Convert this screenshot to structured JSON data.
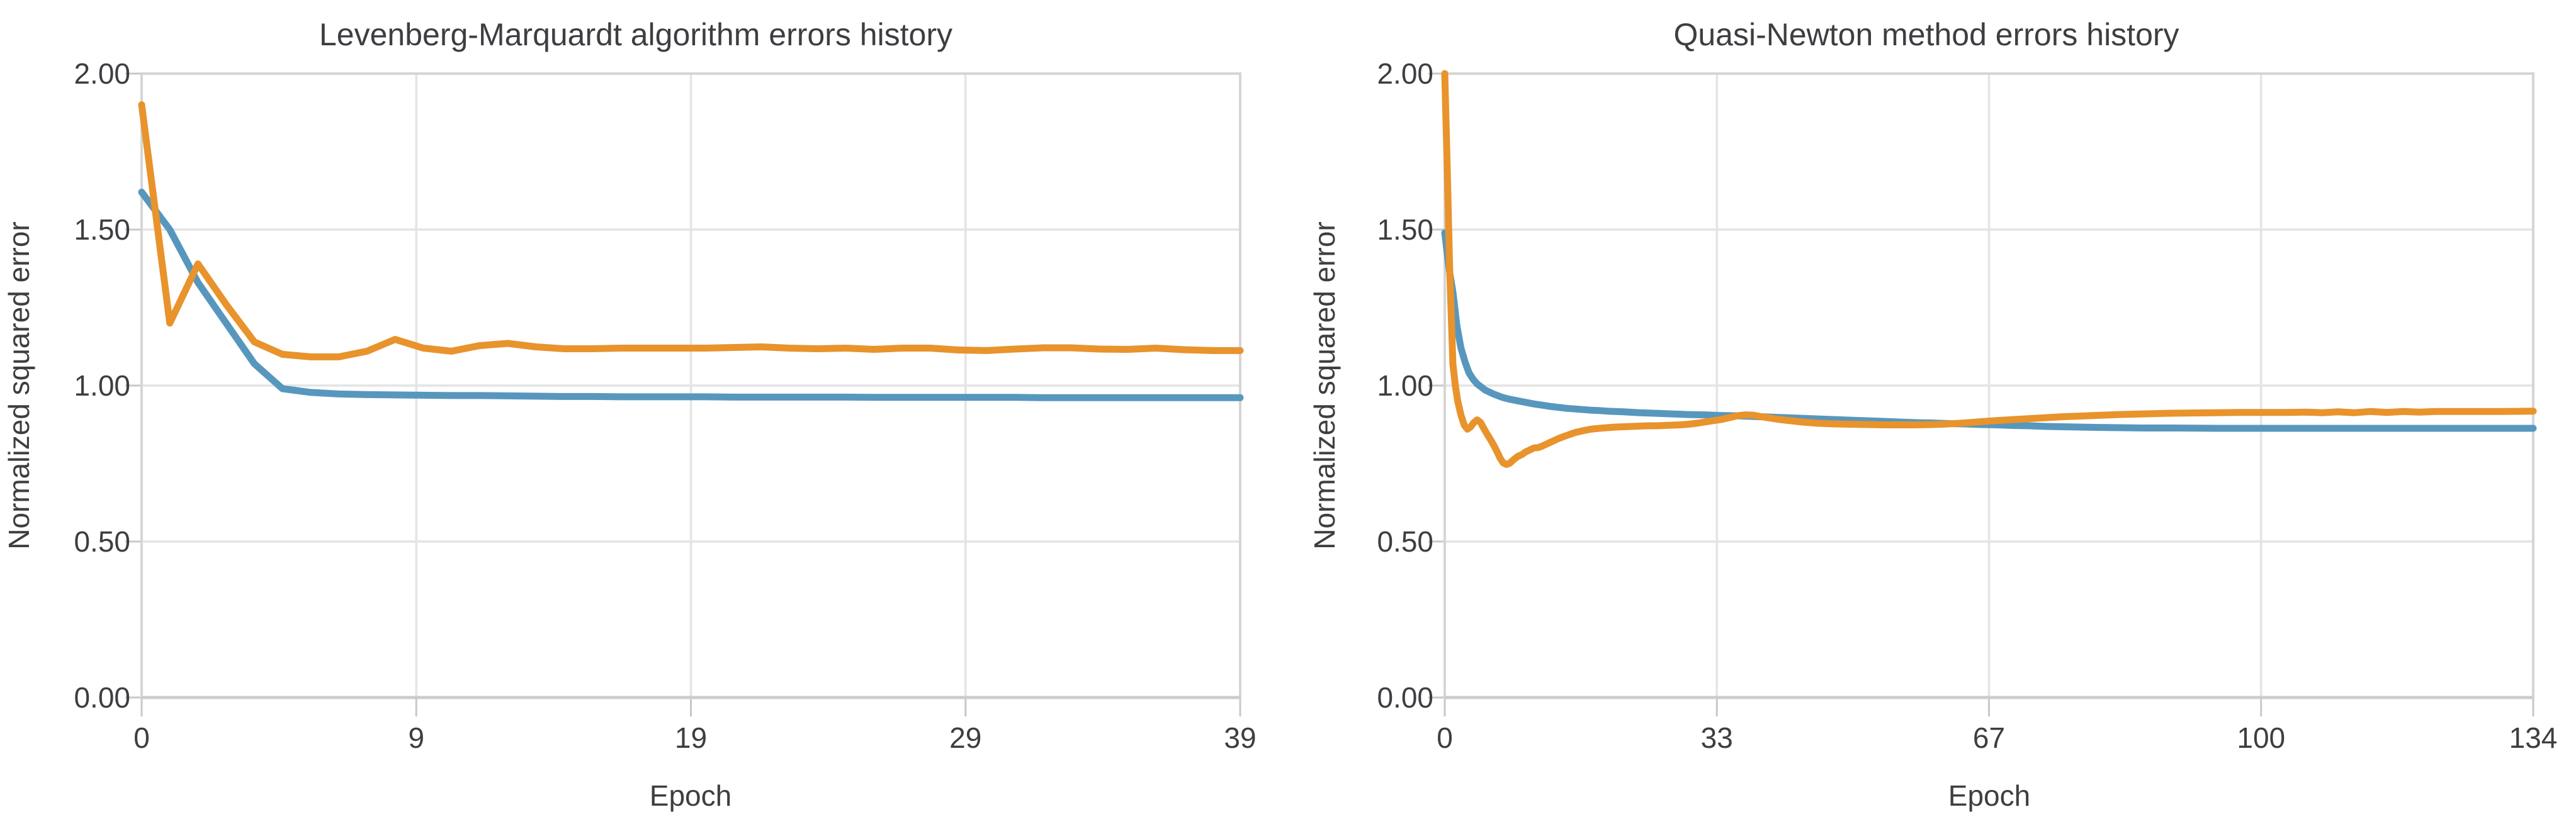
{
  "figure_background": "#ffffff",
  "text_color": "#3e3e42",
  "gridline_color": "#e4e4e4",
  "chart_data": [
    {
      "type": "line",
      "title": "Levenberg-Marquardt algorithm errors history",
      "xlabel": "Epoch",
      "ylabel": "Normalized squared error",
      "xlim": [
        0,
        39
      ],
      "ylim": [
        0,
        2
      ],
      "grid": "on",
      "legend": "none",
      "xtick_labels": [
        "0",
        "9",
        "19",
        "29",
        "39"
      ],
      "yticks": [
        0,
        0.5,
        1,
        1.5,
        2
      ],
      "ytick_labels": [
        "0.00",
        "0.50",
        "1.00",
        "1.50",
        "2.00"
      ],
      "series": [
        {
          "name": "series-blue",
          "color": "#5897bd",
          "points": [
            [
              0,
              1.62
            ],
            [
              1,
              1.5
            ],
            [
              2,
              1.33
            ],
            [
              3,
              1.2
            ],
            [
              4,
              1.07
            ],
            [
              5,
              0.99
            ],
            [
              6,
              0.978
            ],
            [
              7,
              0.973
            ],
            [
              8,
              0.971
            ],
            [
              9,
              0.97
            ],
            [
              10,
              0.969
            ],
            [
              11,
              0.968
            ],
            [
              12,
              0.968
            ],
            [
              13,
              0.967
            ],
            [
              14,
              0.966
            ],
            [
              15,
              0.965
            ],
            [
              16,
              0.965
            ],
            [
              17,
              0.964
            ],
            [
              18,
              0.964
            ],
            [
              19,
              0.964
            ],
            [
              20,
              0.964
            ],
            [
              21,
              0.963
            ],
            [
              22,
              0.963
            ],
            [
              23,
              0.963
            ],
            [
              24,
              0.963
            ],
            [
              25,
              0.963
            ],
            [
              26,
              0.962
            ],
            [
              27,
              0.962
            ],
            [
              28,
              0.962
            ],
            [
              29,
              0.962
            ],
            [
              30,
              0.962
            ],
            [
              31,
              0.962
            ],
            [
              32,
              0.961
            ],
            [
              33,
              0.961
            ],
            [
              34,
              0.961
            ],
            [
              35,
              0.961
            ],
            [
              36,
              0.961
            ],
            [
              37,
              0.961
            ],
            [
              38,
              0.961
            ],
            [
              39,
              0.961
            ]
          ]
        },
        {
          "name": "series-orange",
          "color": "#e8932c",
          "points": [
            [
              0,
              1.9
            ],
            [
              1,
              1.2
            ],
            [
              2,
              1.39
            ],
            [
              3,
              1.26
            ],
            [
              4,
              1.14
            ],
            [
              5,
              1.1
            ],
            [
              6,
              1.092
            ],
            [
              7,
              1.092
            ],
            [
              8,
              1.11
            ],
            [
              9,
              1.148
            ],
            [
              10,
              1.12
            ],
            [
              11,
              1.11
            ],
            [
              12,
              1.128
            ],
            [
              13,
              1.135
            ],
            [
              14,
              1.124
            ],
            [
              15,
              1.118
            ],
            [
              16,
              1.118
            ],
            [
              17,
              1.12
            ],
            [
              18,
              1.12
            ],
            [
              19,
              1.12
            ],
            [
              20,
              1.12
            ],
            [
              21,
              1.122
            ],
            [
              22,
              1.124
            ],
            [
              23,
              1.12
            ],
            [
              24,
              1.118
            ],
            [
              25,
              1.12
            ],
            [
              26,
              1.116
            ],
            [
              27,
              1.12
            ],
            [
              28,
              1.12
            ],
            [
              29,
              1.114
            ],
            [
              30,
              1.112
            ],
            [
              31,
              1.117
            ],
            [
              32,
              1.121
            ],
            [
              33,
              1.121
            ],
            [
              34,
              1.117
            ],
            [
              35,
              1.116
            ],
            [
              36,
              1.12
            ],
            [
              37,
              1.115
            ],
            [
              38,
              1.112
            ],
            [
              39,
              1.112
            ]
          ]
        }
      ]
    },
    {
      "type": "line",
      "title": "Quasi-Newton method errors history",
      "xlabel": "Epoch",
      "ylabel": "Normalized squared error",
      "xlim": [
        0,
        134
      ],
      "ylim": [
        0,
        2
      ],
      "grid": "on",
      "legend": "none",
      "xtick_labels": [
        "0",
        "33",
        "67",
        "100",
        "134"
      ],
      "yticks": [
        0,
        0.5,
        1,
        1.5,
        2
      ],
      "ytick_labels": [
        "0.00",
        "0.50",
        "1.00",
        "1.50",
        "2.00"
      ],
      "series": [
        {
          "name": "series-blue",
          "color": "#5897bd",
          "points": [
            [
              0,
              1.49
            ],
            [
              0.5,
              1.38
            ],
            [
              1,
              1.3
            ],
            [
              1.5,
              1.19
            ],
            [
              2,
              1.12
            ],
            [
              2.5,
              1.075
            ],
            [
              3,
              1.04
            ],
            [
              3.5,
              1.02
            ],
            [
              4,
              1.005
            ],
            [
              5,
              0.985
            ],
            [
              6,
              0.973
            ],
            [
              7,
              0.963
            ],
            [
              8,
              0.956
            ],
            [
              9,
              0.951
            ],
            [
              10,
              0.946
            ],
            [
              11,
              0.941
            ],
            [
              12,
              0.937
            ],
            [
              13,
              0.933
            ],
            [
              14,
              0.93
            ],
            [
              15,
              0.927
            ],
            [
              16,
              0.925
            ],
            [
              17,
              0.923
            ],
            [
              18,
              0.921
            ],
            [
              19,
              0.92
            ],
            [
              20,
              0.918
            ],
            [
              22,
              0.916
            ],
            [
              24,
              0.913
            ],
            [
              26,
              0.911
            ],
            [
              28,
              0.909
            ],
            [
              30,
              0.907
            ],
            [
              32,
              0.906
            ],
            [
              34,
              0.904
            ],
            [
              36,
              0.903
            ],
            [
              38,
              0.901
            ],
            [
              40,
              0.899
            ],
            [
              42,
              0.897
            ],
            [
              44,
              0.895
            ],
            [
              46,
              0.893
            ],
            [
              48,
              0.891
            ],
            [
              50,
              0.889
            ],
            [
              52,
              0.887
            ],
            [
              54,
              0.885
            ],
            [
              56,
              0.883
            ],
            [
              58,
              0.881
            ],
            [
              60,
              0.88
            ],
            [
              62,
              0.878
            ],
            [
              64,
              0.877
            ],
            [
              66,
              0.875
            ],
            [
              68,
              0.874
            ],
            [
              70,
              0.872
            ],
            [
              72,
              0.871
            ],
            [
              74,
              0.869
            ],
            [
              76,
              0.868
            ],
            [
              78,
              0.867
            ],
            [
              80,
              0.866
            ],
            [
              83,
              0.865
            ],
            [
              86,
              0.864
            ],
            [
              90,
              0.864
            ],
            [
              95,
              0.863
            ],
            [
              100,
              0.863
            ],
            [
              105,
              0.863
            ],
            [
              110,
              0.863
            ],
            [
              115,
              0.863
            ],
            [
              120,
              0.863
            ],
            [
              125,
              0.863
            ],
            [
              130,
              0.863
            ],
            [
              134,
              0.863
            ]
          ]
        },
        {
          "name": "series-orange",
          "color": "#e8932c",
          "points": [
            [
              0,
              2.0
            ],
            [
              0.3,
              1.7
            ],
            [
              0.6,
              1.38
            ],
            [
              1,
              1.07
            ],
            [
              1.3,
              1.0
            ],
            [
              1.6,
              0.95
            ],
            [
              2,
              0.905
            ],
            [
              2.4,
              0.873
            ],
            [
              2.8,
              0.86
            ],
            [
              3.2,
              0.868
            ],
            [
              3.6,
              0.882
            ],
            [
              4,
              0.89
            ],
            [
              4.4,
              0.882
            ],
            [
              4.8,
              0.863
            ],
            [
              5.2,
              0.845
            ],
            [
              5.6,
              0.828
            ],
            [
              6,
              0.81
            ],
            [
              6.4,
              0.79
            ],
            [
              6.8,
              0.768
            ],
            [
              7.2,
              0.752
            ],
            [
              7.6,
              0.747
            ],
            [
              8,
              0.751
            ],
            [
              8.5,
              0.763
            ],
            [
              9,
              0.773
            ],
            [
              9.5,
              0.779
            ],
            [
              10,
              0.788
            ],
            [
              10.5,
              0.794
            ],
            [
              11,
              0.8
            ],
            [
              11.5,
              0.801
            ],
            [
              12,
              0.806
            ],
            [
              13,
              0.818
            ],
            [
              14,
              0.83
            ],
            [
              15,
              0.84
            ],
            [
              16,
              0.849
            ],
            [
              17,
              0.855
            ],
            [
              18,
              0.86
            ],
            [
              19,
              0.863
            ],
            [
              20,
              0.865
            ],
            [
              21,
              0.867
            ],
            [
              22,
              0.868
            ],
            [
              23,
              0.869
            ],
            [
              24,
              0.87
            ],
            [
              25,
              0.871
            ],
            [
              26,
              0.871
            ],
            [
              27,
              0.872
            ],
            [
              28,
              0.873
            ],
            [
              29,
              0.874
            ],
            [
              30,
              0.876
            ],
            [
              31,
              0.879
            ],
            [
              32,
              0.883
            ],
            [
              33,
              0.887
            ],
            [
              34,
              0.891
            ],
            [
              35,
              0.897
            ],
            [
              36,
              0.903
            ],
            [
              37,
              0.906
            ],
            [
              38,
              0.905
            ],
            [
              39,
              0.9
            ],
            [
              40,
              0.896
            ],
            [
              41,
              0.892
            ],
            [
              42,
              0.889
            ],
            [
              43,
              0.886
            ],
            [
              44,
              0.883
            ],
            [
              45,
              0.881
            ],
            [
              46,
              0.879
            ],
            [
              48,
              0.877
            ],
            [
              50,
              0.876
            ],
            [
              52,
              0.875
            ],
            [
              54,
              0.874
            ],
            [
              56,
              0.874
            ],
            [
              58,
              0.874
            ],
            [
              60,
              0.875
            ],
            [
              62,
              0.877
            ],
            [
              64,
              0.88
            ],
            [
              66,
              0.884
            ],
            [
              68,
              0.888
            ],
            [
              70,
              0.891
            ],
            [
              72,
              0.894
            ],
            [
              74,
              0.897
            ],
            [
              76,
              0.9
            ],
            [
              78,
              0.902
            ],
            [
              80,
              0.904
            ],
            [
              83,
              0.907
            ],
            [
              86,
              0.909
            ],
            [
              89,
              0.911
            ],
            [
              92,
              0.912
            ],
            [
              95,
              0.913
            ],
            [
              98,
              0.914
            ],
            [
              101,
              0.914
            ],
            [
              104,
              0.914
            ],
            [
              106,
              0.915
            ],
            [
              108,
              0.913
            ],
            [
              110,
              0.916
            ],
            [
              112,
              0.913
            ],
            [
              114,
              0.917
            ],
            [
              116,
              0.914
            ],
            [
              118,
              0.917
            ],
            [
              120,
              0.915
            ],
            [
              122,
              0.917
            ],
            [
              124,
              0.917
            ],
            [
              127,
              0.917
            ],
            [
              130,
              0.917
            ],
            [
              134,
              0.918
            ]
          ]
        }
      ]
    }
  ]
}
